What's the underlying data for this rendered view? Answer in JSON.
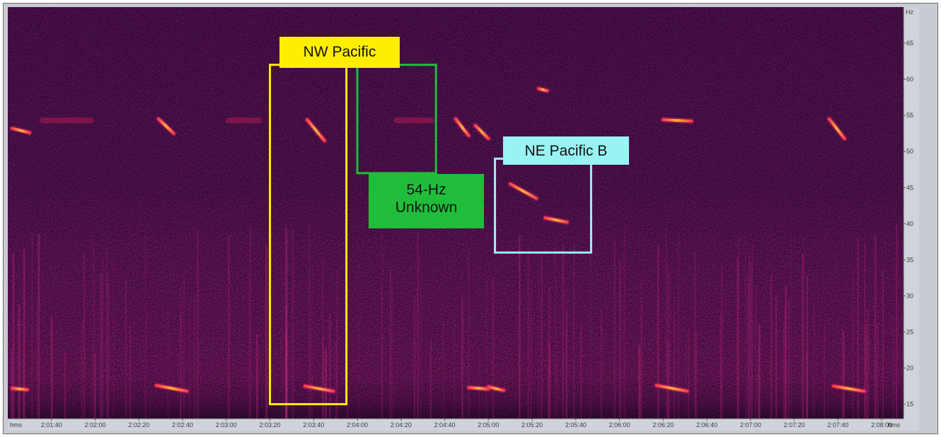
{
  "chart_data": {
    "type": "heatmap",
    "title": "",
    "xlabel": "hms",
    "ylabel": "Hz",
    "x_axis": {
      "unit": "hms",
      "ticks": [
        "2:01:40",
        "2:02:00",
        "2:02:20",
        "2:02:40",
        "2:03:00",
        "2:03:20",
        "2:03:40",
        "2:04:00",
        "2:04:20",
        "2:04:40",
        "2:05:00",
        "2:05:20",
        "2:05:40",
        "2:06:00",
        "2:06:20",
        "2:06:40",
        "2:07:00",
        "2:07:20",
        "2:07:40",
        "2:08:00"
      ],
      "range_seconds": [
        7280,
        7690
      ]
    },
    "y_axis": {
      "unit": "Hz",
      "ticks": [
        15,
        20,
        25,
        30,
        35,
        40,
        45,
        50,
        55,
        60,
        65
      ],
      "range": [
        13,
        70
      ]
    },
    "colormap": [
      "#1a0822",
      "#5a1358",
      "#8e1a72",
      "#d0205a",
      "#ff5a3a",
      "#ffd060"
    ],
    "annotations": [
      {
        "label": "NW Pacific",
        "color": "#ffee00",
        "t_start": 7400,
        "t_end": 7435,
        "f_low": 15,
        "f_high": 62
      },
      {
        "label": "54-Hz\nUnknown",
        "color": "#1fbd3a",
        "t_start": 7440,
        "t_end": 7476,
        "f_low": 47,
        "f_high": 62
      },
      {
        "label": "NE Pacific B",
        "color": "#99f3f3",
        "t_start": 7503,
        "t_end": 7547,
        "f_low": 36,
        "f_high": 49
      }
    ],
    "calls": [
      {
        "t_start": 7282,
        "t_end": 7289,
        "f_start": 17.2,
        "f_end": 17.0
      },
      {
        "t_start": 7348,
        "t_end": 7362,
        "f_start": 17.6,
        "f_end": 16.8
      },
      {
        "t_start": 7416,
        "t_end": 7429,
        "f_start": 17.5,
        "f_end": 16.8
      },
      {
        "t_start": 7491,
        "t_end": 7500,
        "f_start": 17.3,
        "f_end": 17.1
      },
      {
        "t_start": 7500,
        "t_end": 7507,
        "f_start": 17.4,
        "f_end": 16.9
      },
      {
        "t_start": 7577,
        "t_end": 7591,
        "f_start": 17.6,
        "f_end": 16.8
      },
      {
        "t_start": 7658,
        "t_end": 7672,
        "f_start": 17.5,
        "f_end": 16.8
      },
      {
        "t_start": 7282,
        "t_end": 7290,
        "f_start": 53.2,
        "f_end": 52.6
      },
      {
        "t_start": 7296,
        "t_end": 7318,
        "f_start": 54.3,
        "f_end": 54.3
      },
      {
        "t_start": 7349,
        "t_end": 7356,
        "f_start": 54.5,
        "f_end": 52.5
      },
      {
        "t_start": 7381,
        "t_end": 7395,
        "f_start": 54.3,
        "f_end": 54.3
      },
      {
        "t_start": 7417,
        "t_end": 7425,
        "f_start": 54.4,
        "f_end": 51.5
      },
      {
        "t_start": 7458,
        "t_end": 7474,
        "f_start": 54.3,
        "f_end": 54.3
      },
      {
        "t_start": 7485,
        "t_end": 7491,
        "f_start": 54.5,
        "f_end": 52.2
      },
      {
        "t_start": 7494,
        "t_end": 7500,
        "f_start": 53.6,
        "f_end": 51.8
      },
      {
        "t_start": 7580,
        "t_end": 7593,
        "f_start": 54.4,
        "f_end": 54.2
      },
      {
        "t_start": 7656,
        "t_end": 7663,
        "f_start": 54.5,
        "f_end": 51.8
      },
      {
        "t_start": 7510,
        "t_end": 7522,
        "f_start": 45.5,
        "f_end": 43.5
      },
      {
        "t_start": 7526,
        "t_end": 7536,
        "f_start": 40.8,
        "f_end": 40.2
      },
      {
        "t_start": 7523,
        "t_end": 7527,
        "f_start": 58.7,
        "f_end": 58.4
      }
    ]
  }
}
